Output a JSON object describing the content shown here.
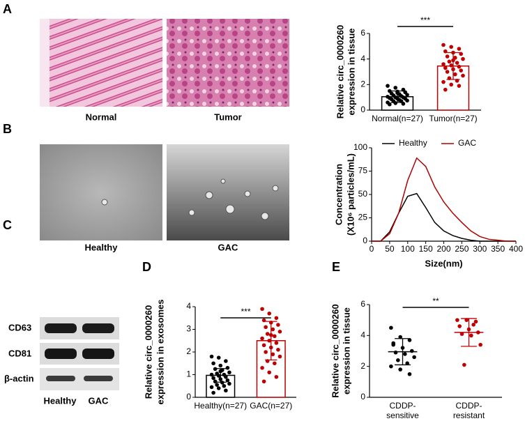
{
  "panels": [
    "A",
    "B",
    "C",
    "D",
    "E"
  ],
  "images": {
    "A": [
      "Normal",
      "Tumor"
    ],
    "B": [
      "Healthy",
      "GAC"
    ]
  },
  "blot": {
    "rows": [
      "CD63",
      "CD81",
      "β-actin"
    ],
    "lanes": [
      "Healthy",
      "GAC"
    ]
  },
  "chart_data": [
    {
      "type": "bar",
      "categories": [
        "Normal(n=27)",
        "Tumor(n=27)"
      ],
      "ylabel": [
        "Relative circ_0000260",
        "expression in tissue"
      ],
      "values": [
        1.05,
        3.45
      ],
      "errors": [
        0.45,
        1.05
      ],
      "colors": [
        "#000000",
        "#c00000"
      ],
      "points": [
        [
          1.9,
          1.75,
          1.6,
          1.5,
          1.45,
          1.4,
          1.3,
          1.25,
          1.2,
          1.15,
          1.1,
          1.05,
          1.0,
          1.0,
          0.95,
          0.9,
          0.9,
          0.85,
          0.8,
          0.75,
          0.7,
          0.7,
          0.6,
          0.55,
          0.5,
          0.45,
          1.35
        ],
        [
          5.1,
          4.95,
          4.8,
          4.6,
          4.5,
          4.4,
          4.2,
          4.1,
          4.0,
          3.8,
          3.7,
          3.6,
          3.5,
          3.4,
          3.3,
          3.2,
          3.1,
          3.0,
          2.8,
          2.7,
          2.5,
          2.3,
          2.2,
          2.0,
          1.9,
          1.6,
          3.9
        ]
      ],
      "ylim": [
        0,
        6
      ],
      "yticks": [
        0,
        2,
        4,
        6
      ],
      "annotation": "***"
    },
    {
      "type": "line",
      "xlabel": "Size(nm)",
      "ylabel": [
        "Concentration",
        "(X10⁶ particles/mL)"
      ],
      "x": [
        0,
        25,
        50,
        75,
        100,
        125,
        150,
        175,
        200,
        225,
        250,
        275,
        300,
        325,
        350,
        375,
        400
      ],
      "series": [
        {
          "name": "Healthy",
          "color": "#000000",
          "values": [
            0,
            0,
            10,
            30,
            48,
            51,
            36,
            20,
            11,
            6,
            3,
            1,
            0,
            0,
            0,
            0,
            0
          ]
        },
        {
          "name": "GAC",
          "color": "#b00000",
          "values": [
            0,
            0,
            8,
            30,
            65,
            89,
            80,
            58,
            42,
            30,
            20,
            11,
            5,
            2,
            1,
            0,
            0
          ]
        }
      ],
      "xlim": [
        0,
        400
      ],
      "xticks": [
        0,
        50,
        100,
        150,
        200,
        250,
        300,
        350,
        400
      ],
      "ylim": [
        0,
        100
      ],
      "yticks": [
        0,
        25,
        50,
        75,
        100
      ],
      "legend": "top"
    },
    {
      "type": "bar",
      "categories": [
        "Healthy(n=27)",
        "GAC(n=27)"
      ],
      "ylabel": [
        "Relative circ_0000260",
        "expression in exosomes"
      ],
      "values": [
        0.97,
        2.5
      ],
      "errors": [
        0.3,
        0.85
      ],
      "colors": [
        "#000000",
        "#c00000"
      ],
      "points": [
        [
          1.8,
          1.75,
          1.6,
          1.5,
          1.4,
          1.3,
          1.25,
          1.2,
          1.1,
          1.05,
          1.0,
          1.0,
          0.95,
          0.9,
          0.85,
          0.8,
          0.75,
          0.7,
          0.65,
          0.6,
          0.55,
          0.5,
          0.45,
          0.4,
          0.3,
          0.2,
          1.15
        ],
        [
          3.9,
          3.7,
          3.5,
          3.4,
          3.3,
          3.2,
          3.1,
          3.0,
          2.9,
          2.8,
          2.7,
          2.6,
          2.5,
          2.4,
          2.3,
          2.2,
          2.1,
          2.0,
          1.9,
          1.8,
          1.6,
          1.5,
          1.3,
          1.1,
          0.9,
          0.7,
          2.75
        ]
      ],
      "ylim": [
        0,
        4
      ],
      "yticks": [
        0,
        1,
        2,
        3,
        4
      ],
      "annotation": "***"
    },
    {
      "type": "scatter",
      "categories": [
        [
          "CDDP-",
          "sensitive"
        ],
        [
          "CDDP-",
          "resistant"
        ]
      ],
      "ylabel": [
        "Relative circ_0000260",
        "expression in tissue"
      ],
      "values": [
        2.95,
        4.2
      ],
      "errors": [
        0.85,
        0.9
      ],
      "colors": [
        "#000000",
        "#c00000"
      ],
      "points": [
        [
          4.5,
          3.9,
          3.7,
          3.5,
          3.2,
          3.0,
          2.9,
          2.8,
          2.6,
          2.4,
          2.2,
          2.0,
          1.8,
          1.5,
          3.4
        ],
        [
          5.0,
          5.0,
          4.9,
          4.6,
          4.4,
          4.2,
          4.1,
          4.0,
          3.4,
          2.1,
          4.7
        ]
      ],
      "ylim": [
        0,
        6
      ],
      "yticks": [
        0,
        2,
        4,
        6
      ],
      "annotation": "**"
    }
  ]
}
